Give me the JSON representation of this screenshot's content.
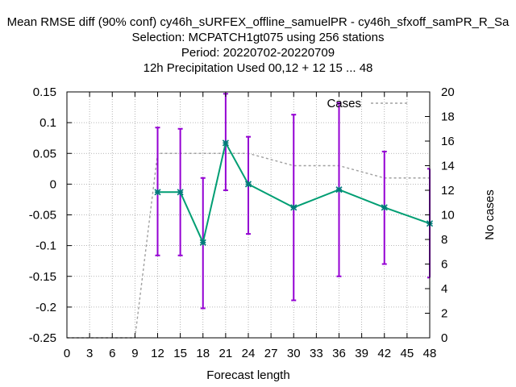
{
  "chart_data": {
    "type": "line",
    "title_lines": [
      "Mean RMSE diff (90% conf) cy46h_sURFEX_offline_samuelPR - cy46h_sfxoff_samPR_R_Sa",
      "Selection: MCPATCH1gt075 using   256 stations",
      "Period: 20220702-20220709",
      "12h Precipitation   Used  00,12  + 12 15 ... 48"
    ],
    "xlabel": "Forecast length",
    "ylabel_right": "No cases",
    "xlim": [
      0,
      48
    ],
    "ylim": [
      -0.25,
      0.15
    ],
    "y2lim": [
      0,
      20
    ],
    "xticks": [
      0,
      3,
      6,
      9,
      12,
      15,
      18,
      21,
      24,
      27,
      30,
      33,
      36,
      39,
      42,
      45,
      48
    ],
    "yticks": [
      -0.25,
      -0.2,
      -0.15,
      -0.1,
      -0.05,
      0,
      0.05,
      0.1,
      0.15
    ],
    "ytick_labels": [
      "-0.25",
      "-0.2",
      "-0.15",
      "-0.1",
      "-0.05",
      "0",
      "0.05",
      "0.1",
      "0.15"
    ],
    "y2ticks": [
      0,
      2,
      4,
      6,
      8,
      10,
      12,
      14,
      16,
      18,
      20
    ],
    "grid": true,
    "legend_position": "top-right",
    "series": [
      {
        "name": "",
        "color": "#009e73",
        "marker_color": "#007a7a",
        "x": [
          12,
          15,
          18,
          21,
          24,
          30,
          36,
          42,
          48
        ],
        "y": [
          -0.013,
          -0.013,
          -0.095,
          0.067,
          0.0,
          -0.038,
          -0.009,
          -0.038,
          -0.064
        ],
        "err_low": [
          -0.116,
          -0.116,
          -0.202,
          -0.01,
          -0.081,
          -0.189,
          -0.15,
          -0.13,
          -0.152
        ],
        "err_high": [
          0.092,
          0.09,
          0.01,
          0.147,
          0.077,
          0.113,
          0.132,
          0.053,
          0.025
        ],
        "err_color": "#9400d3"
      },
      {
        "name": "Cases",
        "axis": "right",
        "color": "#a0a0a0",
        "dashed": true,
        "x": [
          0,
          3,
          6,
          9,
          12,
          15,
          18,
          21,
          24,
          30,
          36,
          42,
          48
        ],
        "y": [
          0,
          0,
          0,
          0,
          15,
          15,
          15,
          15,
          15,
          14,
          14,
          13,
          13
        ]
      }
    ]
  }
}
